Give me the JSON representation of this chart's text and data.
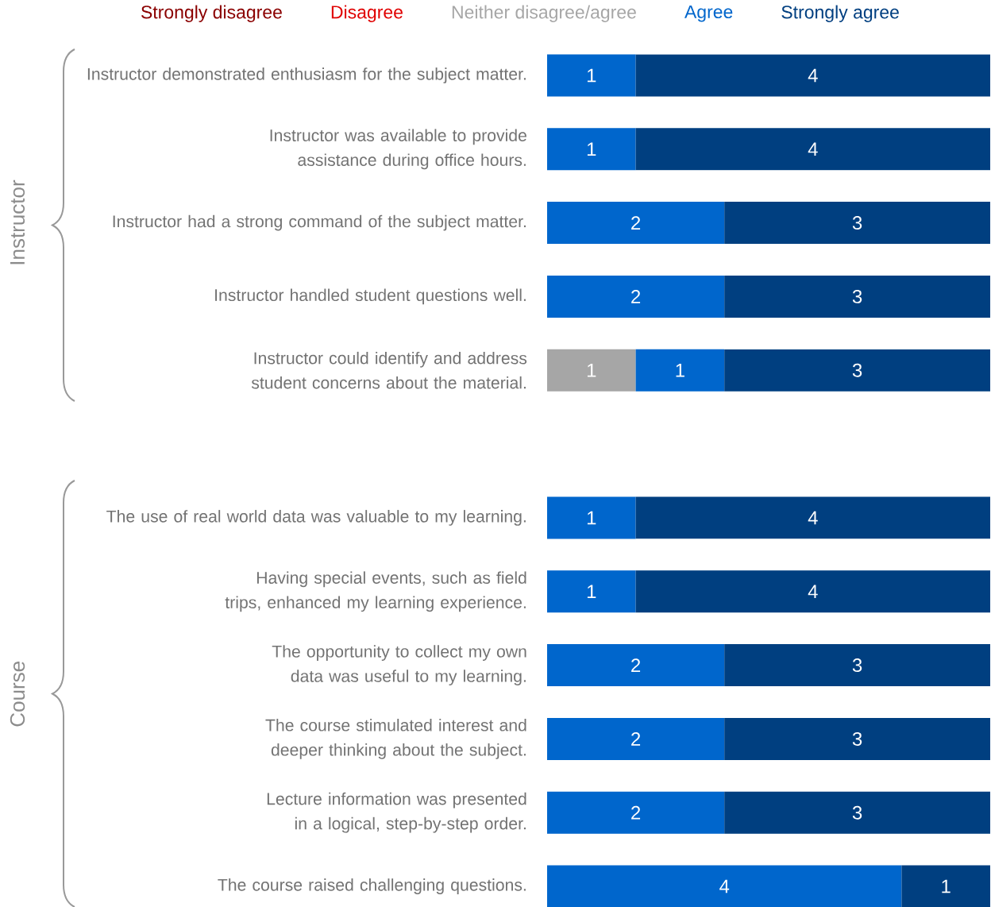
{
  "chart_data": [
    {
      "type": "bar",
      "orientation": "horizontal",
      "stacked": true,
      "ylabel": "Instructor",
      "categories": [
        "Instructor demonstrated enthusiasm for the subject matter.",
        "Instructor was available to provide assistance during office hours.",
        "Instructor had a strong command of the subject matter.",
        "Instructor handled student questions well.",
        "Instructor could identify and address student concerns about the material."
      ],
      "series": [
        {
          "name": "Strongly disagree",
          "color": "#8b0000",
          "values": [
            null,
            null,
            null,
            null,
            null
          ]
        },
        {
          "name": "Disagree",
          "color": "#e00000",
          "values": [
            null,
            null,
            null,
            null,
            null
          ]
        },
        {
          "name": "Neither disagree/agree",
          "color": "#a6a6a6",
          "values": [
            null,
            null,
            null,
            null,
            1
          ]
        },
        {
          "name": "Agree",
          "color": "#0066cc",
          "values": [
            1,
            1,
            2,
            2,
            1
          ]
        },
        {
          "name": "Strongly agree",
          "color": "#003f80",
          "values": [
            4,
            4,
            3,
            3,
            3
          ]
        }
      ],
      "xlim": [
        0,
        5
      ],
      "tick_labels": "y",
      "data_labels": true,
      "legend": "top"
    },
    {
      "type": "bar",
      "orientation": "horizontal",
      "stacked": true,
      "ylabel": "Course",
      "categories": [
        "The use of real world data was valuable to my learning.",
        "Having special events, such as field trips, enhanced my learning experience.",
        "The opportunity to collect my own data was useful to my learning.",
        "The course stimulated interest and deeper thinking about the subject.",
        "Lecture information was presented in a logical, step-by-step order.",
        "The course raised challenging questions."
      ],
      "series": [
        {
          "color": "#8b0000",
          "values": [
            null,
            null,
            null,
            null,
            null,
            null
          ]
        },
        {
          "color": "#e00000",
          "values": [
            null,
            null,
            null,
            null,
            null,
            null
          ]
        },
        {
          "color": "#a6a6a6",
          "values": [
            null,
            null,
            null,
            null,
            null,
            null
          ]
        },
        {
          "color": "#0066cc",
          "values": [
            1,
            1,
            2,
            2,
            2,
            4
          ]
        },
        {
          "color": "#003f80",
          "values": [
            4,
            4,
            3,
            3,
            3,
            1
          ]
        }
      ],
      "xlim": [
        0,
        5
      ],
      "tick_labels": "y",
      "data_labels": true
    }
  ]
}
